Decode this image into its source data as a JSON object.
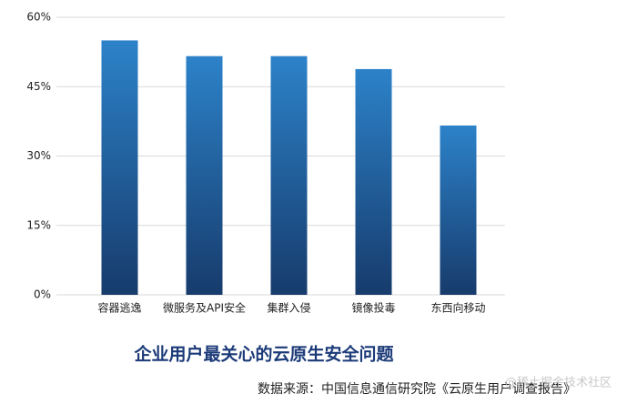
{
  "chart_data": {
    "type": "bar",
    "title": "企业用户最关心的云原生安全问题",
    "subtitle": "数据来源：中国信息通信研究院《云原生用户调查报告》",
    "watermark": "@稀土掘金技术社区",
    "categories": [
      "容器逃逸",
      "微服务及API安全",
      "集群入侵",
      "镜像投毒",
      "东西向移动"
    ],
    "values": [
      55,
      51.6,
      51.6,
      48.8,
      36.6
    ],
    "color": "#1f5f9e",
    "ylim": [
      0,
      60
    ],
    "yticks": [
      {
        "value": 0,
        "label": "0%"
      },
      {
        "value": 15,
        "label": "15%"
      },
      {
        "value": 30,
        "label": "30%"
      },
      {
        "value": 45,
        "label": "45%"
      },
      {
        "value": 60,
        "label": "60%"
      }
    ],
    "grid": true
  }
}
